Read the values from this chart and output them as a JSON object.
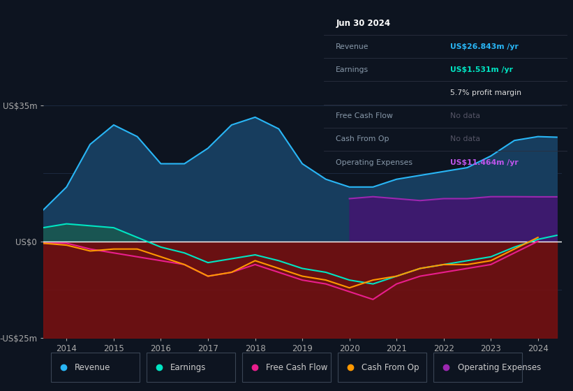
{
  "bg_color": "#0d1420",
  "axis_label_color": "#aaaaaa",
  "grid_color": "#1e2d45",
  "zero_line_color": "#ffffff",
  "years": [
    2013.5,
    2014.0,
    2014.5,
    2015.0,
    2015.5,
    2016.0,
    2016.5,
    2017.0,
    2017.5,
    2018.0,
    2018.5,
    2019.0,
    2019.5,
    2020.0,
    2020.5,
    2021.0,
    2021.5,
    2022.0,
    2022.5,
    2023.0,
    2023.5,
    2024.0,
    2024.4
  ],
  "revenue": [
    8,
    14,
    25,
    30,
    27,
    20,
    20,
    24,
    30,
    32,
    29,
    20,
    16,
    14,
    14,
    16,
    17,
    18,
    19,
    22,
    26,
    27,
    26.843
  ],
  "earnings": [
    3.5,
    4.5,
    4.0,
    3.5,
    1.0,
    -1.5,
    -3,
    -5.5,
    -4.5,
    -3.5,
    -5,
    -7,
    -8,
    -10,
    -11,
    -9,
    -7,
    -6,
    -5,
    -4,
    -1.5,
    0.5,
    1.531
  ],
  "free_cash_flow": [
    -0.5,
    -0.5,
    -2,
    -3,
    -4,
    -5,
    -6,
    -9,
    -8,
    -6,
    -8,
    -10,
    -11,
    -13,
    -15,
    -11,
    -9,
    -8,
    -7,
    -6,
    -3,
    0.0,
    null
  ],
  "cash_from_op": [
    -0.5,
    -1,
    -2.5,
    -2,
    -2,
    -4,
    -6,
    -9,
    -8,
    -5,
    -7,
    -9,
    -10,
    -12,
    -10,
    -9,
    -7,
    -6,
    -6,
    -5,
    -2,
    1.0,
    null
  ],
  "operating_expenses": [
    null,
    null,
    null,
    null,
    null,
    null,
    null,
    null,
    null,
    null,
    null,
    null,
    null,
    11,
    11.5,
    11,
    10.5,
    11,
    11,
    11.5,
    11.5,
    11.464,
    11.464
  ],
  "revenue_color": "#29b6f6",
  "revenue_fill_pos": "#173d5e",
  "earnings_color": "#00e5c3",
  "earnings_fill_pos": "#1a5c50",
  "neg_fill_color": "#7a1010",
  "free_cash_flow_color": "#e91e8c",
  "cash_from_op_color": "#ff9800",
  "op_exp_color": "#9c27b0",
  "op_exp_fill": "#3d1a6e",
  "opex_start_x": 2019.5,
  "y_min": -25,
  "y_max": 35,
  "x_min": 2013.5,
  "x_max": 2024.5,
  "ytick_values": [
    35,
    0,
    -25
  ],
  "ytick_labels": [
    "US$35m",
    "US$0",
    "-US$25m"
  ],
  "xtick_values": [
    2014,
    2015,
    2016,
    2017,
    2018,
    2019,
    2020,
    2021,
    2022,
    2023,
    2024
  ],
  "tooltip_title": "Jun 30 2024",
  "tooltip_rows": [
    {
      "label": "Revenue",
      "value": "US$26.843m /yr",
      "type": "revenue"
    },
    {
      "label": "Earnings",
      "value": "US$1.531m /yr",
      "type": "earnings"
    },
    {
      "label": "",
      "value": "5.7% profit margin",
      "type": "margin"
    },
    {
      "label": "Free Cash Flow",
      "value": "No data",
      "type": "nodata"
    },
    {
      "label": "Cash From Op",
      "value": "No data",
      "type": "nodata"
    },
    {
      "label": "Operating Expenses",
      "value": "US$11.464m /yr",
      "type": "opex"
    }
  ],
  "legend_items": [
    "Revenue",
    "Earnings",
    "Free Cash Flow",
    "Cash From Op",
    "Operating Expenses"
  ],
  "legend_colors": [
    "#29b6f6",
    "#00e5c3",
    "#e91e8c",
    "#ff9800",
    "#9c27b0"
  ]
}
